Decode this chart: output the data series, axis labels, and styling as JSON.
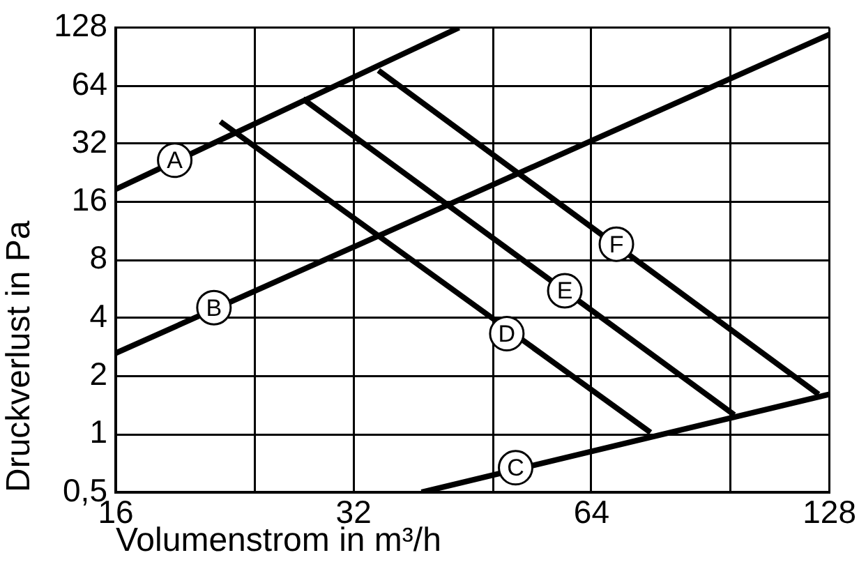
{
  "chart_data": {
    "type": "line",
    "xlabel": "Volumenstrom in m³/h",
    "ylabel": "Druckverlust in Pa",
    "series": [
      {
        "x": [
          16,
          43.5
        ],
        "values": [
          18.6,
          128
        ],
        "color": "#000000"
      },
      {
        "x": [
          16,
          128
        ],
        "values": [
          2.63,
          118
        ],
        "color": "#000000"
      },
      {
        "x": [
          39,
          128
        ],
        "values": [
          0.5,
          1.61
        ],
        "color": "#000000"
      },
      {
        "x": [
          21.7,
          76
        ],
        "values": [
          41.7,
          1.02
        ],
        "color": "#000000"
      },
      {
        "x": [
          27.6,
          97
        ],
        "values": [
          54.7,
          1.26
        ],
        "color": "#000000"
      },
      {
        "x": [
          34.4,
          124
        ],
        "values": [
          76.8,
          1.61
        ],
        "color": "#000000"
      }
    ],
    "annotations": [
      {
        "text": "A",
        "x": 19,
        "y": 26.3
      },
      {
        "text": "B",
        "x": 21.3,
        "y": 4.53
      },
      {
        "text": "C",
        "x": 51.3,
        "y": 0.67
      },
      {
        "text": "D",
        "x": 50,
        "y": 3.32
      },
      {
        "text": "E",
        "x": 59.2,
        "y": 5.54
      },
      {
        "text": "F",
        "x": 68.8,
        "y": 9.66
      }
    ],
    "log": "xy",
    "xlim": [
      16,
      128
    ],
    "ylim": [
      0.5,
      128
    ],
    "xticks": [
      16,
      {
        "value": 24,
        "label": null
      },
      32,
      {
        "value": 48,
        "label": null
      },
      64,
      {
        "value": 96,
        "label": null
      },
      128
    ],
    "yticks": [
      {
        "value": 0.5,
        "label": "0,5"
      },
      1,
      2,
      4,
      8,
      16,
      32,
      64,
      128
    ],
    "grid": true,
    "marker": "none",
    "line_style": "solid"
  }
}
